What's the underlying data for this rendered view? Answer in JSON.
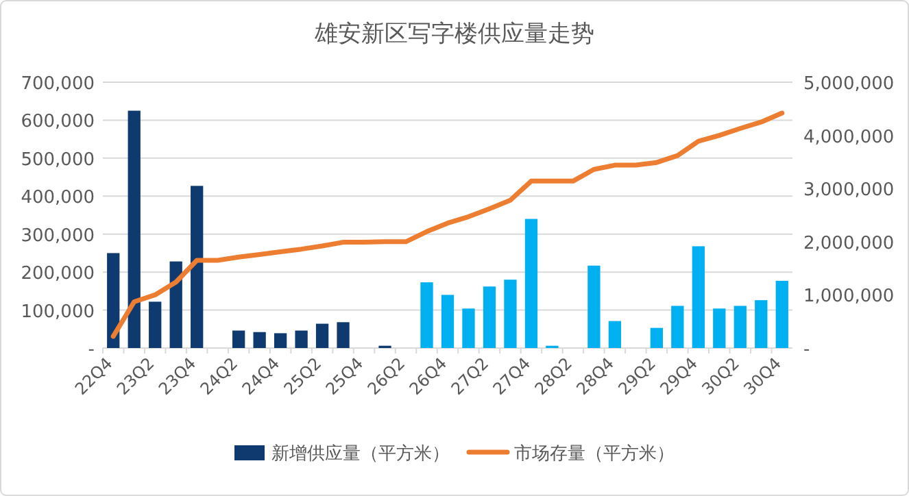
{
  "chart_data": {
    "type": "bar",
    "title": "雄安新区写字楼供应量走势",
    "categories": [
      "22Q4",
      null,
      "23Q2",
      null,
      "23Q4",
      null,
      "24Q2",
      null,
      "24Q4",
      null,
      "25Q2",
      null,
      "25Q4",
      null,
      "26Q2",
      null,
      "26Q4",
      null,
      "27Q2",
      null,
      "27Q4",
      null,
      "28Q2",
      null,
      "28Q4",
      null,
      "29Q2",
      null,
      "29Q4",
      null,
      "30Q2",
      null,
      "30Q4"
    ],
    "series": [
      {
        "name": "新增供应量（平方米）",
        "color": "#0e3a70",
        "values": [
          250000,
          625000,
          122000,
          228000,
          427000,
          0,
          46000,
          42000,
          39000,
          46000,
          64000,
          68000,
          0,
          6000,
          0,
          173000,
          140000,
          104000,
          162000,
          180000,
          340000,
          6000,
          0,
          217000,
          71000,
          0,
          53000,
          111000,
          268000,
          104000,
          111000,
          126000,
          177000
        ],
        "colors": [
          "#0e3a70",
          "#0e3a70",
          "#0e3a70",
          "#0e3a70",
          "#0e3a70",
          "#0e3a70",
          "#0e3a70",
          "#0e3a70",
          "#0e3a70",
          "#0e3a70",
          "#0e3a70",
          "#0e3a70",
          "#0e3a70",
          "#0e3a70",
          "#0e3a70",
          "#00b0f0",
          "#00b0f0",
          "#00b0f0",
          "#00b0f0",
          "#00b0f0",
          "#00b0f0",
          "#00b0f0",
          "#00b0f0",
          "#00b0f0",
          "#00b0f0",
          "#00b0f0",
          "#00b0f0",
          "#00b0f0",
          "#00b0f0",
          "#00b0f0",
          "#00b0f0",
          "#00b0f0",
          "#00b0f0"
        ]
      },
      {
        "name": "市场存量（平方米）",
        "type": "line",
        "axis": "y2",
        "color": "#ed7d31",
        "values": [
          220000,
          870000,
          1000000,
          1240000,
          1650000,
          1650000,
          1710000,
          1760000,
          1810000,
          1860000,
          1920000,
          1990000,
          1990000,
          2000000,
          2000000,
          2190000,
          2350000,
          2470000,
          2620000,
          2780000,
          3140000,
          3140000,
          3140000,
          3360000,
          3440000,
          3440000,
          3490000,
          3620000,
          3890000,
          4000000,
          4130000,
          4250000,
          4420000
        ]
      }
    ],
    "ylim": [
      0,
      700000
    ],
    "yticks": [
      {
        "value": 0,
        "label": "-"
      },
      {
        "value": 100000,
        "label": "100,000"
      },
      {
        "value": 200000,
        "label": "200,000"
      },
      {
        "value": 300000,
        "label": "300,000"
      },
      {
        "value": 400000,
        "label": "400,000"
      },
      {
        "value": 500000,
        "label": "500,000"
      },
      {
        "value": 600000,
        "label": "600,000"
      },
      {
        "value": 700000,
        "label": "700,000"
      }
    ],
    "y2lim": [
      0,
      5000000
    ],
    "y2ticks": [
      {
        "value": 0,
        "label": "-"
      },
      {
        "value": 1000000,
        "label": "1,000,000"
      },
      {
        "value": 2000000,
        "label": "2,000,000"
      },
      {
        "value": 3000000,
        "label": "3,000,000"
      },
      {
        "value": 4000000,
        "label": "4,000,000"
      },
      {
        "value": 5000000,
        "label": "5,000,000"
      }
    ],
    "grid": "y",
    "legend": "bottom"
  }
}
